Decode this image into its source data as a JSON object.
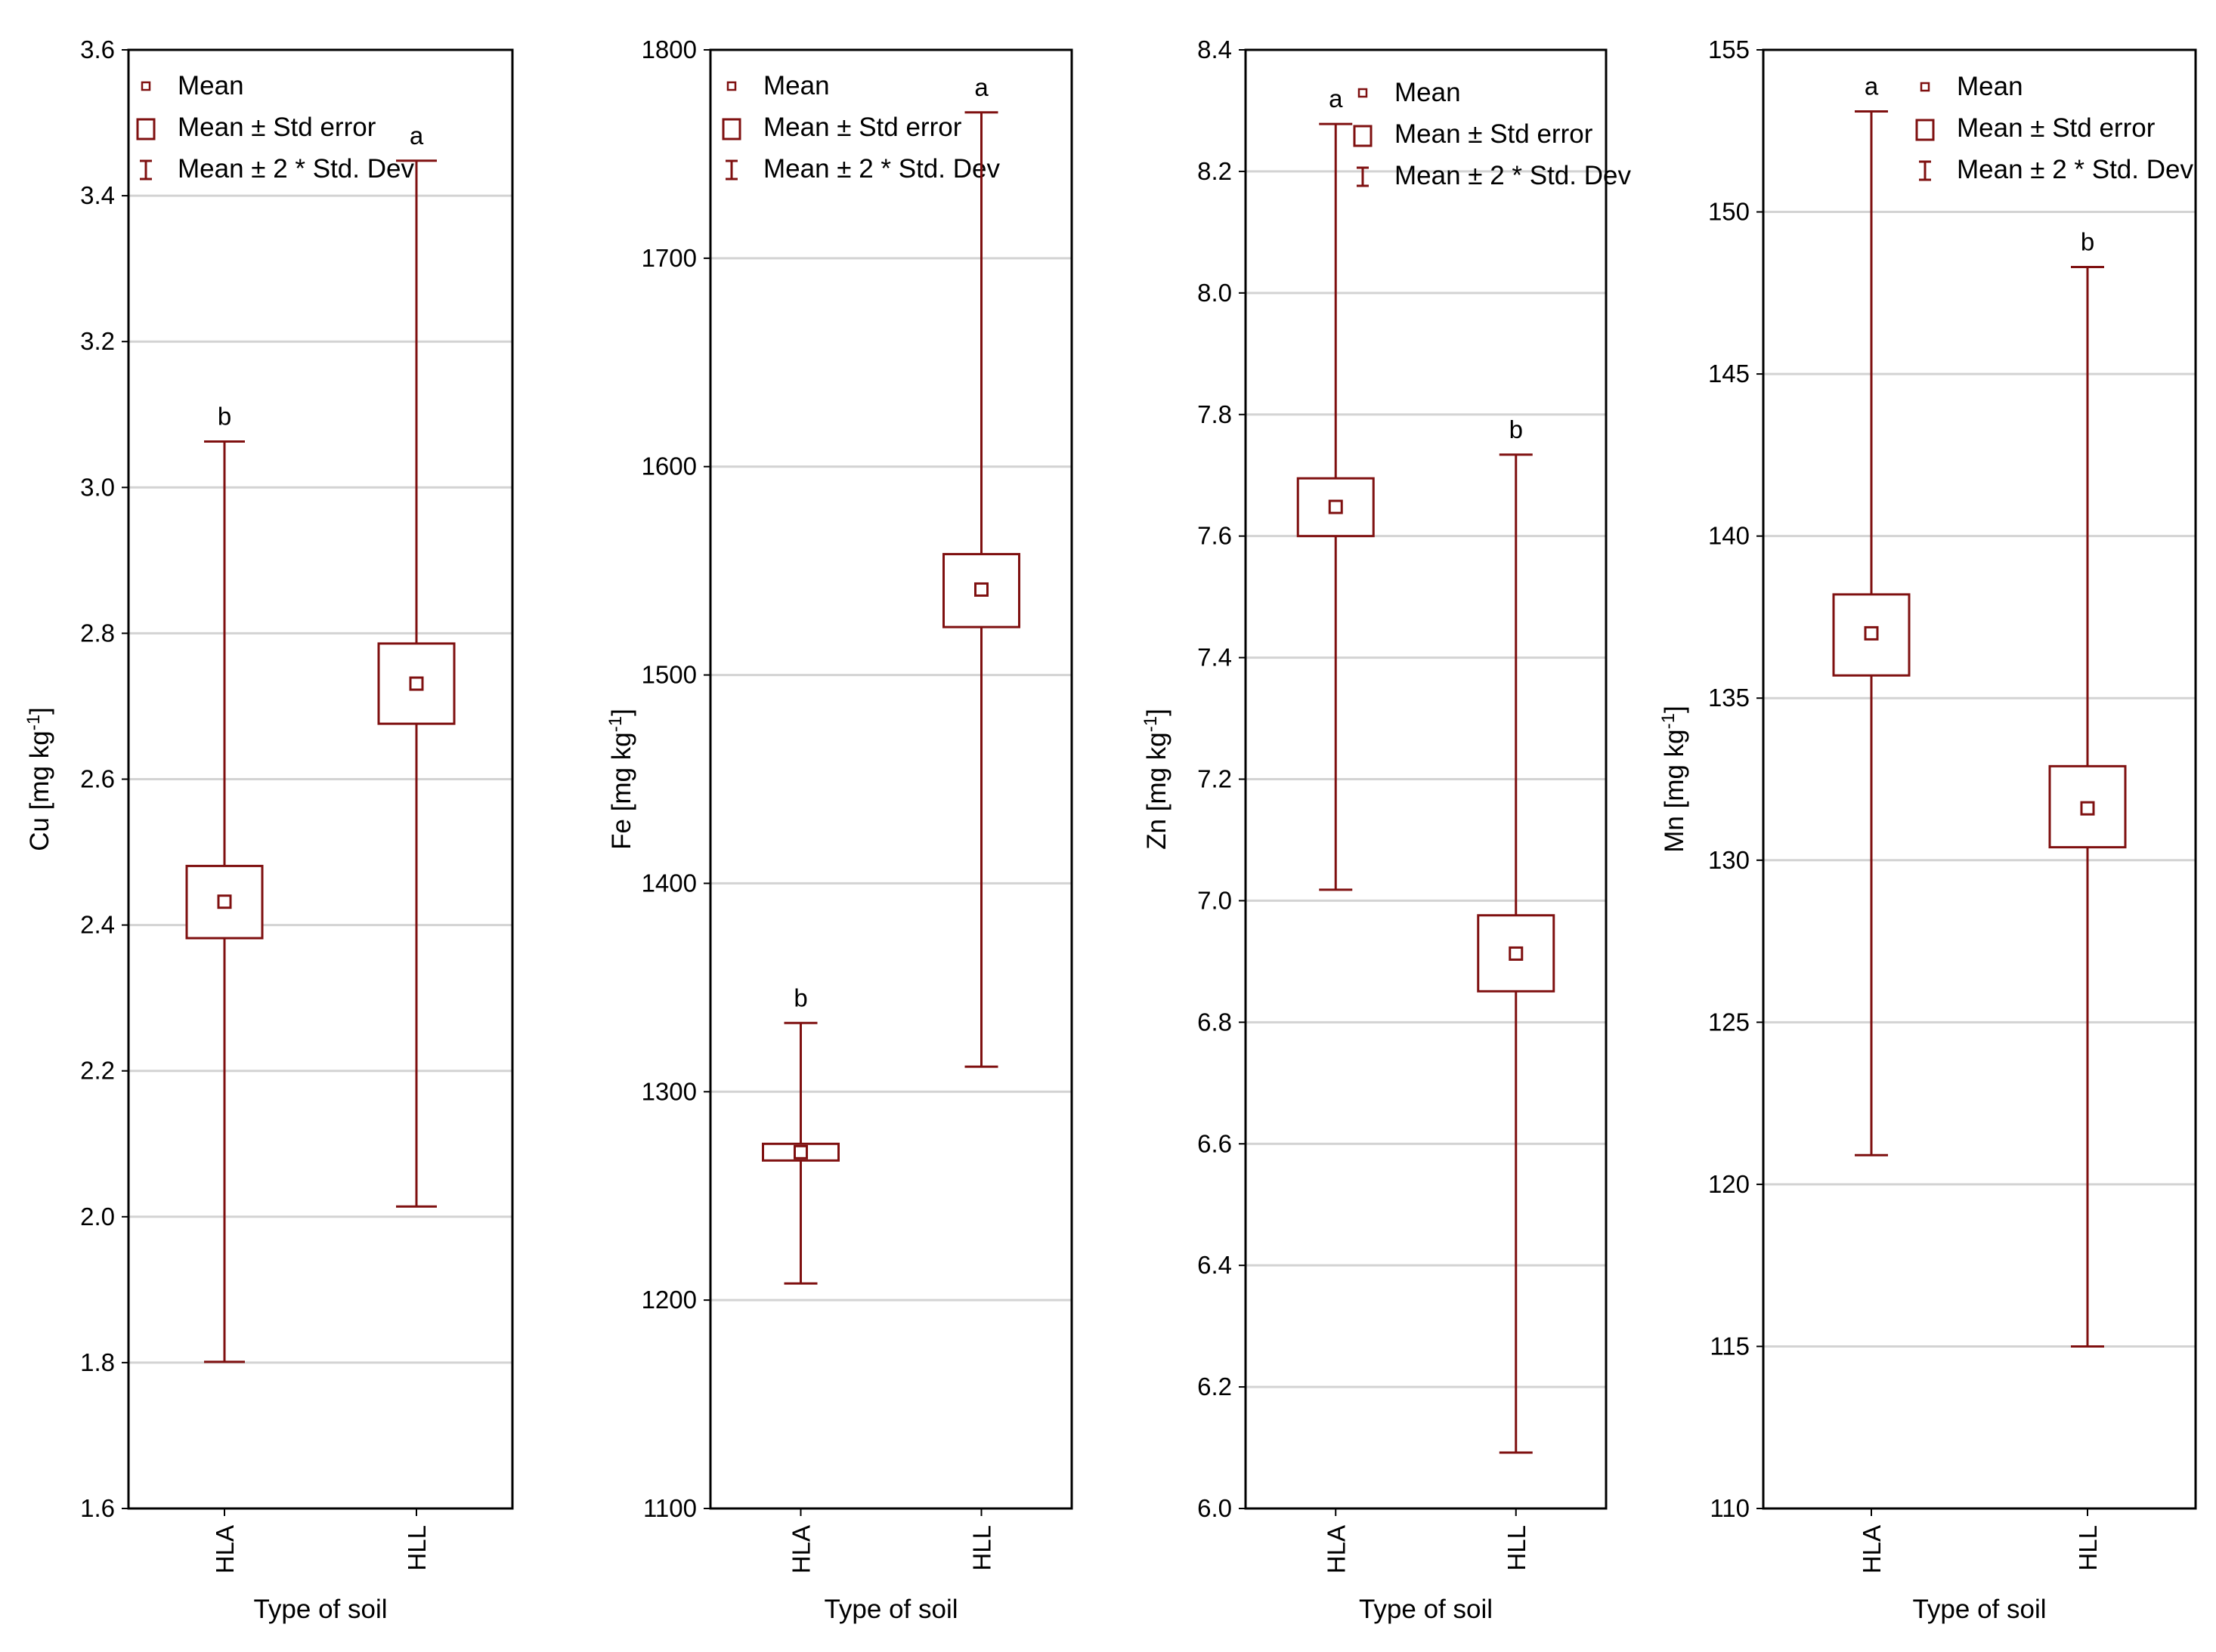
{
  "colors": {
    "series": "#7f1010",
    "grid": "#d3d3d3",
    "frame": "#000000"
  },
  "legend": [
    {
      "label": "Mean",
      "icon": "small-square-marker"
    },
    {
      "label": "Mean ± Std error",
      "icon": "large-square-box"
    },
    {
      "label": "Mean ± 2 * Std. Dev",
      "icon": "whisker-bar"
    }
  ],
  "chart_data": [
    {
      "type": "box-whisker",
      "element": "Cu",
      "xlabel": "Type of soil",
      "ylabel": {
        "text": "Cu [mg kg",
        "sup": "-1",
        "suffix": "]"
      },
      "ylim": [
        1.6,
        3.6
      ],
      "yticks": [
        1.6,
        1.8,
        2.0,
        2.2,
        2.4,
        2.6,
        2.8,
        3.0,
        3.2,
        3.4,
        3.6
      ],
      "tick_decimals": 1,
      "grid": true,
      "categories": [
        "HLA",
        "HLL"
      ],
      "series": [
        {
          "category": "HLA",
          "mean": 2.432,
          "se_low": 2.382,
          "se_high": 2.481,
          "sd_low": 1.801,
          "sd_high": 3.063,
          "letter": "b"
        },
        {
          "category": "HLL",
          "mean": 2.731,
          "se_low": 2.676,
          "se_high": 2.786,
          "sd_low": 2.014,
          "sd_high": 3.448,
          "letter": "a"
        }
      ]
    },
    {
      "type": "box-whisker",
      "element": "Fe",
      "xlabel": "Type of soil",
      "ylabel": {
        "text": "Fe [mg kg",
        "sup": "-1",
        "suffix": "]"
      },
      "ylim": [
        1100,
        1800
      ],
      "yticks": [
        1100,
        1200,
        1300,
        1400,
        1500,
        1600,
        1700,
        1800
      ],
      "tick_decimals": 0,
      "grid": true,
      "categories": [
        "HLA",
        "HLL"
      ],
      "series": [
        {
          "category": "HLA",
          "mean": 1271,
          "se_low": 1267,
          "se_high": 1275,
          "sd_low": 1208,
          "sd_high": 1333,
          "letter": "b"
        },
        {
          "category": "HLL",
          "mean": 1541,
          "se_low": 1523,
          "se_high": 1558,
          "sd_low": 1312,
          "sd_high": 1770,
          "letter": "a"
        }
      ]
    },
    {
      "type": "box-whisker",
      "element": "Zn",
      "xlabel": "Type of soil",
      "ylabel": {
        "text": "Zn [mg kg",
        "sup": "-1",
        "suffix": "]"
      },
      "ylim": [
        6.0,
        8.4
      ],
      "yticks": [
        6.0,
        6.2,
        6.4,
        6.6,
        6.8,
        7.0,
        7.2,
        7.4,
        7.6,
        7.8,
        8.0,
        8.2,
        8.4
      ],
      "tick_decimals": 1,
      "grid": true,
      "categories": [
        "HLA",
        "HLL"
      ],
      "series": [
        {
          "category": "HLA",
          "mean": 7.648,
          "se_low": 7.6,
          "se_high": 7.695,
          "sd_low": 7.018,
          "sd_high": 8.278,
          "letter": "a"
        },
        {
          "category": "HLL",
          "mean": 6.913,
          "se_low": 6.851,
          "se_high": 6.976,
          "sd_low": 6.092,
          "sd_high": 7.734,
          "letter": "b"
        }
      ]
    },
    {
      "type": "box-whisker",
      "element": "Mn",
      "xlabel": "Type of soil",
      "ylabel": {
        "text": "Mn [mg kg",
        "sup": "-1",
        "suffix": "]"
      },
      "ylim": [
        110,
        155
      ],
      "yticks": [
        110,
        115,
        120,
        125,
        130,
        135,
        140,
        145,
        150,
        155
      ],
      "tick_decimals": 0,
      "grid": true,
      "categories": [
        "HLA",
        "HLL"
      ],
      "series": [
        {
          "category": "HLA",
          "mean": 137.0,
          "se_low": 135.7,
          "se_high": 138.2,
          "sd_low": 120.9,
          "sd_high": 153.1,
          "letter": "a"
        },
        {
          "category": "HLL",
          "mean": 131.6,
          "se_low": 130.4,
          "se_high": 132.9,
          "sd_low": 115.0,
          "sd_high": 148.3,
          "letter": "b"
        }
      ]
    }
  ]
}
